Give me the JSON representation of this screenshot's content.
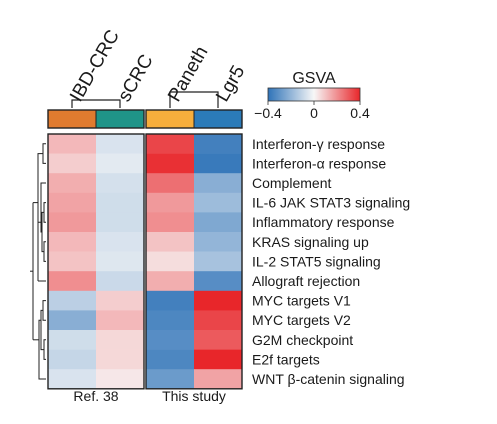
{
  "chart_data": {
    "type": "heatmap",
    "title": "",
    "rows": [
      "Interferon-γ response",
      "Interferon-α response",
      "Complement",
      "IL-6 JAK STAT3 signaling",
      "Inflammatory response",
      "KRAS signaling up",
      "IL-2 STAT5 signaling",
      "Allograft rejection",
      "MYC targets V1",
      "MYC targets V2",
      "G2M checkpoint",
      "E2f targets",
      "WNT β-catenin signaling"
    ],
    "panels": [
      {
        "footer": "Ref. 38",
        "columns": [
          {
            "name": "IBD-CRC",
            "annotation_color": "#e07b2f"
          },
          {
            "name": "sCRC",
            "annotation_color": "#1f9488"
          }
        ],
        "values": [
          [
            0.12,
            -0.06
          ],
          [
            0.08,
            -0.04
          ],
          [
            0.14,
            -0.07
          ],
          [
            0.16,
            -0.08
          ],
          [
            0.18,
            -0.08
          ],
          [
            0.12,
            -0.06
          ],
          [
            0.1,
            -0.05
          ],
          [
            0.2,
            -0.09
          ],
          [
            -0.12,
            0.08
          ],
          [
            -0.22,
            0.12
          ],
          [
            -0.08,
            0.06
          ],
          [
            -0.1,
            0.06
          ],
          [
            -0.06,
            0.03
          ]
        ]
      },
      {
        "footer": "This study",
        "columns": [
          {
            "name": "Paneth",
            "annotation_color": "#f6ae3c"
          },
          {
            "name": "Lgr5",
            "annotation_color": "#2b7bb9"
          }
        ],
        "values": [
          [
            0.34,
            -0.36
          ],
          [
            0.38,
            -0.38
          ],
          [
            0.26,
            -0.22
          ],
          [
            0.18,
            -0.18
          ],
          [
            0.2,
            -0.24
          ],
          [
            0.1,
            -0.2
          ],
          [
            0.05,
            -0.16
          ],
          [
            0.14,
            -0.32
          ],
          [
            -0.36,
            0.4
          ],
          [
            -0.34,
            0.34
          ],
          [
            -0.32,
            0.3
          ],
          [
            -0.34,
            0.4
          ],
          [
            -0.28,
            0.16
          ]
        ]
      }
    ],
    "legend": {
      "title": "GSVA",
      "min": -0.4,
      "max": 0.4,
      "ticks": [
        "−0.4",
        "0",
        "0.4"
      ],
      "low_color": "#2f73b8",
      "mid_color": "#f7f7f7",
      "high_color": "#e8262a"
    },
    "dendrograms": {
      "rows": true,
      "columns": true
    }
  }
}
